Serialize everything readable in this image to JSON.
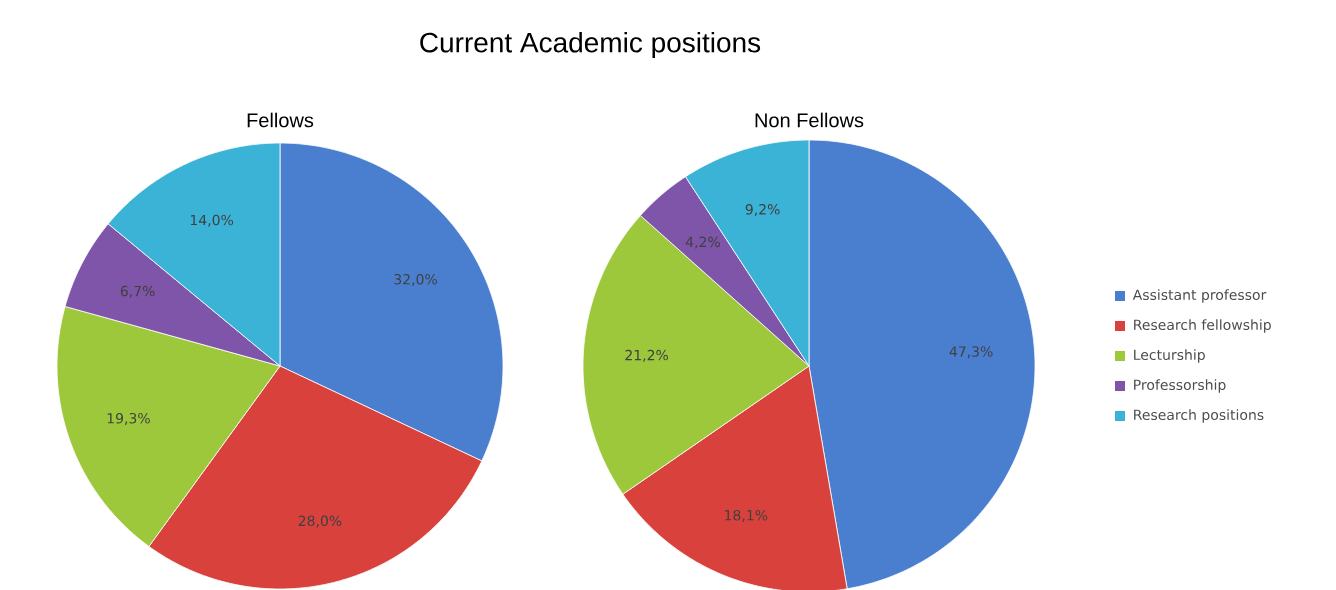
{
  "chart_data": [
    {
      "type": "pie",
      "title": "Current Academic positions",
      "subtitle": "Fellows",
      "values": [
        32.0,
        28.0,
        19.3,
        6.7,
        14.0
      ],
      "value_labels": [
        "32,0%",
        "28,0%",
        "19,3%",
        "6,7%",
        "14,0%"
      ],
      "colors": [
        "#4a7fd0",
        "#d9413c",
        "#9dc83c",
        "#7e55a8",
        "#3bb3d6"
      ]
    },
    {
      "type": "pie",
      "subtitle": "Non Fellows",
      "categories": [
        "Assistant professor",
        "Research fellowship",
        "Lecturship",
        "Professorship",
        "Research positions"
      ],
      "values": [
        47.3,
        18.1,
        21.2,
        4.2,
        9.2
      ],
      "value_labels": [
        "47,3%",
        "18,1%",
        "21,2%",
        "4,2%",
        "9,2%"
      ],
      "colors": [
        "#4a7fd0",
        "#d9413c",
        "#9dc83c",
        "#7e55a8",
        "#3bb3d6"
      ],
      "legend": "right"
    }
  ]
}
